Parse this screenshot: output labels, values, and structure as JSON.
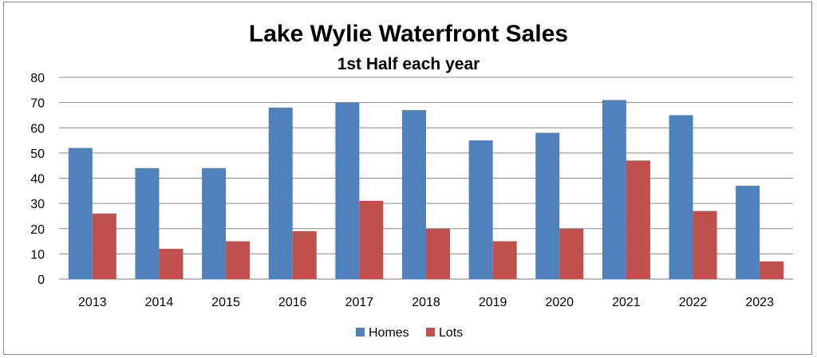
{
  "chart_data": {
    "type": "bar",
    "title": "Lake Wylie Waterfront Sales",
    "subtitle": "1st Half each year",
    "categories": [
      "2013",
      "2014",
      "2015",
      "2016",
      "2017",
      "2018",
      "2019",
      "2020",
      "2021",
      "2022",
      "2023"
    ],
    "series": [
      {
        "name": "Homes",
        "color": "#4f81bd",
        "values": [
          52,
          44,
          44,
          68,
          70,
          67,
          55,
          58,
          71,
          65,
          37
        ]
      },
      {
        "name": "Lots",
        "color": "#c0504d",
        "values": [
          26,
          12,
          15,
          19,
          31,
          20,
          15,
          20,
          47,
          27,
          7
        ]
      }
    ],
    "ylim": [
      0,
      80
    ],
    "yticks": [
      "0",
      "10",
      "20",
      "30",
      "40",
      "50",
      "60",
      "70",
      "80"
    ],
    "grid": true,
    "legend_position": "bottom"
  }
}
